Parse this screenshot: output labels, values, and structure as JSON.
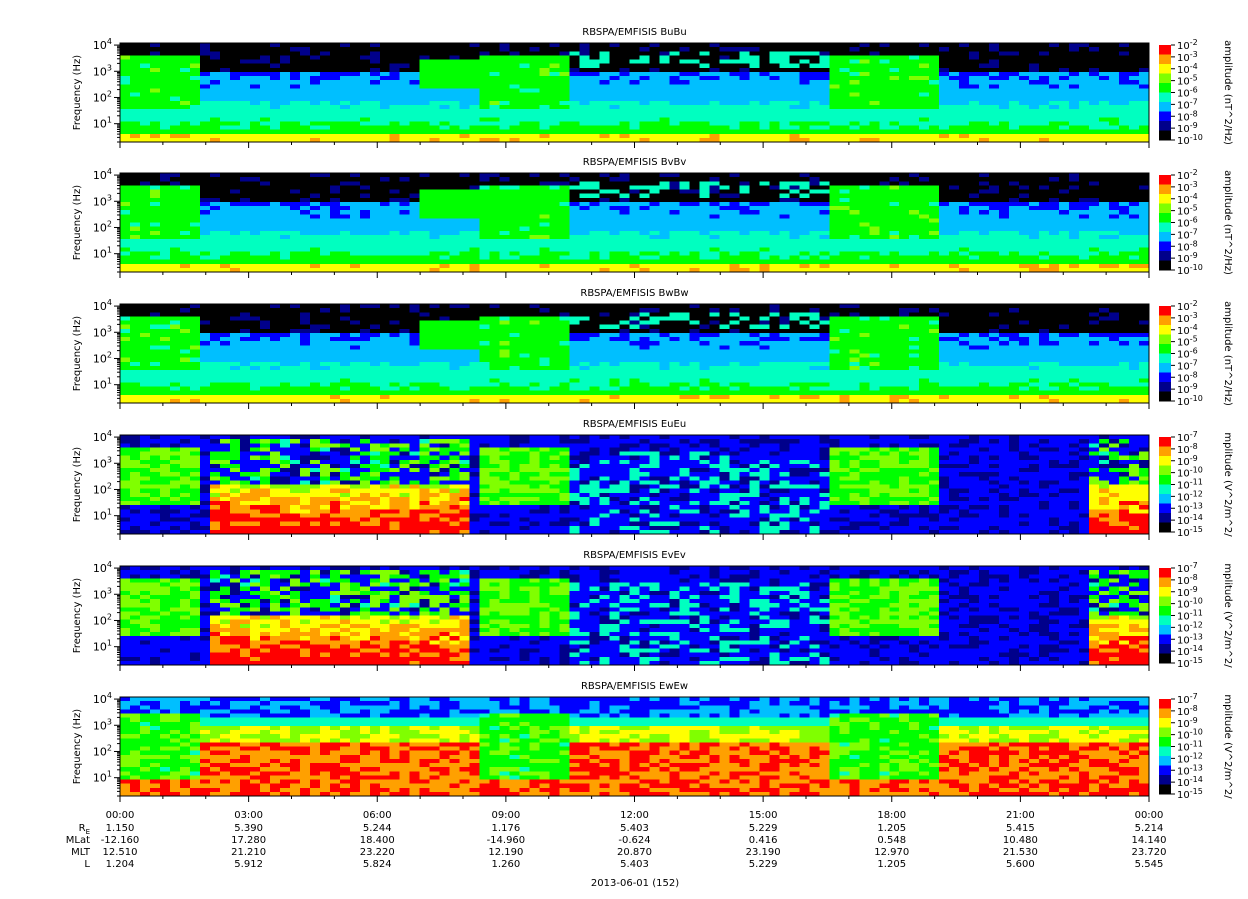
{
  "chart_data": {
    "type": "heatmap",
    "panels": [
      {
        "title": "RBSPA/EMFISIS  BuBu",
        "ylabel": "Frequency (Hz)",
        "cbar_label": "amplitude (nT^2/Hz)",
        "kind": "B",
        "cbar_ticks": [
          [
            "10",
            "-2"
          ],
          [
            "10",
            "-3"
          ],
          [
            "10",
            "-4"
          ],
          [
            "10",
            "-5"
          ],
          [
            "10",
            "-6"
          ],
          [
            "10",
            "-7"
          ],
          [
            "10",
            "-8"
          ],
          [
            "10",
            "-9"
          ],
          [
            "10",
            "-10"
          ]
        ]
      },
      {
        "title": "RBSPA/EMFISIS  BvBv",
        "ylabel": "Frequency (Hz)",
        "cbar_label": "amplitude (nT^2/Hz)",
        "kind": "B",
        "cbar_ticks": [
          [
            "10",
            "-2"
          ],
          [
            "10",
            "-3"
          ],
          [
            "10",
            "-4"
          ],
          [
            "10",
            "-5"
          ],
          [
            "10",
            "-6"
          ],
          [
            "10",
            "-7"
          ],
          [
            "10",
            "-8"
          ],
          [
            "10",
            "-9"
          ],
          [
            "10",
            "-10"
          ]
        ]
      },
      {
        "title": "RBSPA/EMFISIS  BwBw",
        "ylabel": "Frequency (Hz)",
        "cbar_label": "amplitude (nT^2/Hz)",
        "kind": "B",
        "cbar_ticks": [
          [
            "10",
            "-2"
          ],
          [
            "10",
            "-3"
          ],
          [
            "10",
            "-4"
          ],
          [
            "10",
            "-5"
          ],
          [
            "10",
            "-6"
          ],
          [
            "10",
            "-7"
          ],
          [
            "10",
            "-8"
          ],
          [
            "10",
            "-9"
          ],
          [
            "10",
            "-10"
          ]
        ]
      },
      {
        "title": "RBSPA/EMFISIS  EuEu",
        "ylabel": "Frequency (Hz)",
        "cbar_label": "mplitude (V^2/m^2/",
        "kind": "E",
        "cbar_ticks": [
          [
            "10",
            "-7"
          ],
          [
            "10",
            "-8"
          ],
          [
            "10",
            "-9"
          ],
          [
            "10",
            "-10"
          ],
          [
            "10",
            "-11"
          ],
          [
            "10",
            "-12"
          ],
          [
            "10",
            "-13"
          ],
          [
            "10",
            "-14"
          ],
          [
            "10",
            "-15"
          ]
        ]
      },
      {
        "title": "RBSPA/EMFISIS  EvEv",
        "ylabel": "Frequency (Hz)",
        "cbar_label": "mplitude (V^2/m^2/",
        "kind": "E",
        "cbar_ticks": [
          [
            "10",
            "-7"
          ],
          [
            "10",
            "-8"
          ],
          [
            "10",
            "-9"
          ],
          [
            "10",
            "-10"
          ],
          [
            "10",
            "-11"
          ],
          [
            "10",
            "-12"
          ],
          [
            "10",
            "-13"
          ],
          [
            "10",
            "-14"
          ],
          [
            "10",
            "-15"
          ]
        ]
      },
      {
        "title": "RBSPA/EMFISIS  EwEw",
        "ylabel": "Frequency (Hz)",
        "cbar_label": "mplitude (V^2/m^2/",
        "kind": "Ew",
        "cbar_ticks": [
          [
            "10",
            "-7"
          ],
          [
            "10",
            "-8"
          ],
          [
            "10",
            "-9"
          ],
          [
            "10",
            "-10"
          ],
          [
            "10",
            "-11"
          ],
          [
            "10",
            "-12"
          ],
          [
            "10",
            "-13"
          ],
          [
            "10",
            "-14"
          ],
          [
            "10",
            "-15"
          ]
        ]
      }
    ],
    "y_ticks": [
      [
        "10",
        "1"
      ],
      [
        "10",
        "2"
      ],
      [
        "10",
        "3"
      ],
      [
        "10",
        "4"
      ]
    ],
    "ylim_hz": [
      2,
      12000
    ],
    "yscale": "log",
    "x_ticks": [
      "00:00",
      "03:00",
      "06:00",
      "09:00",
      "12:00",
      "15:00",
      "18:00",
      "21:00",
      "00:00"
    ],
    "xlim_hours": [
      0,
      24
    ],
    "ephemeris": {
      "labels": [
        {
          "main": "R",
          "sub": "E"
        },
        {
          "main": "MLat"
        },
        {
          "main": "MLT"
        },
        {
          "main": "L"
        }
      ],
      "rows": [
        [
          "1.150",
          "5.390",
          "5.244",
          "1.176",
          "5.403",
          "5.229",
          "1.205",
          "5.415",
          "5.214"
        ],
        [
          "-12.160",
          "17.280",
          "18.400",
          "-14.960",
          "-0.624",
          "0.416",
          "0.548",
          "10.480",
          "14.140"
        ],
        [
          "12.510",
          "21.210",
          "23.220",
          "12.190",
          "20.870",
          "23.190",
          "12.970",
          "21.530",
          "23.720"
        ],
        [
          "1.204",
          "5.912",
          "5.824",
          "1.260",
          "5.403",
          "5.229",
          "1.205",
          "5.600",
          "5.545"
        ]
      ]
    },
    "xlabel": "2013-06-01 (152)",
    "colormap": [
      "#000000",
      "#00008b",
      "#0000ff",
      "#00bfff",
      "#00ffc0",
      "#00ff00",
      "#80ff00",
      "#ffff00",
      "#ffa000",
      "#ff0000"
    ]
  }
}
